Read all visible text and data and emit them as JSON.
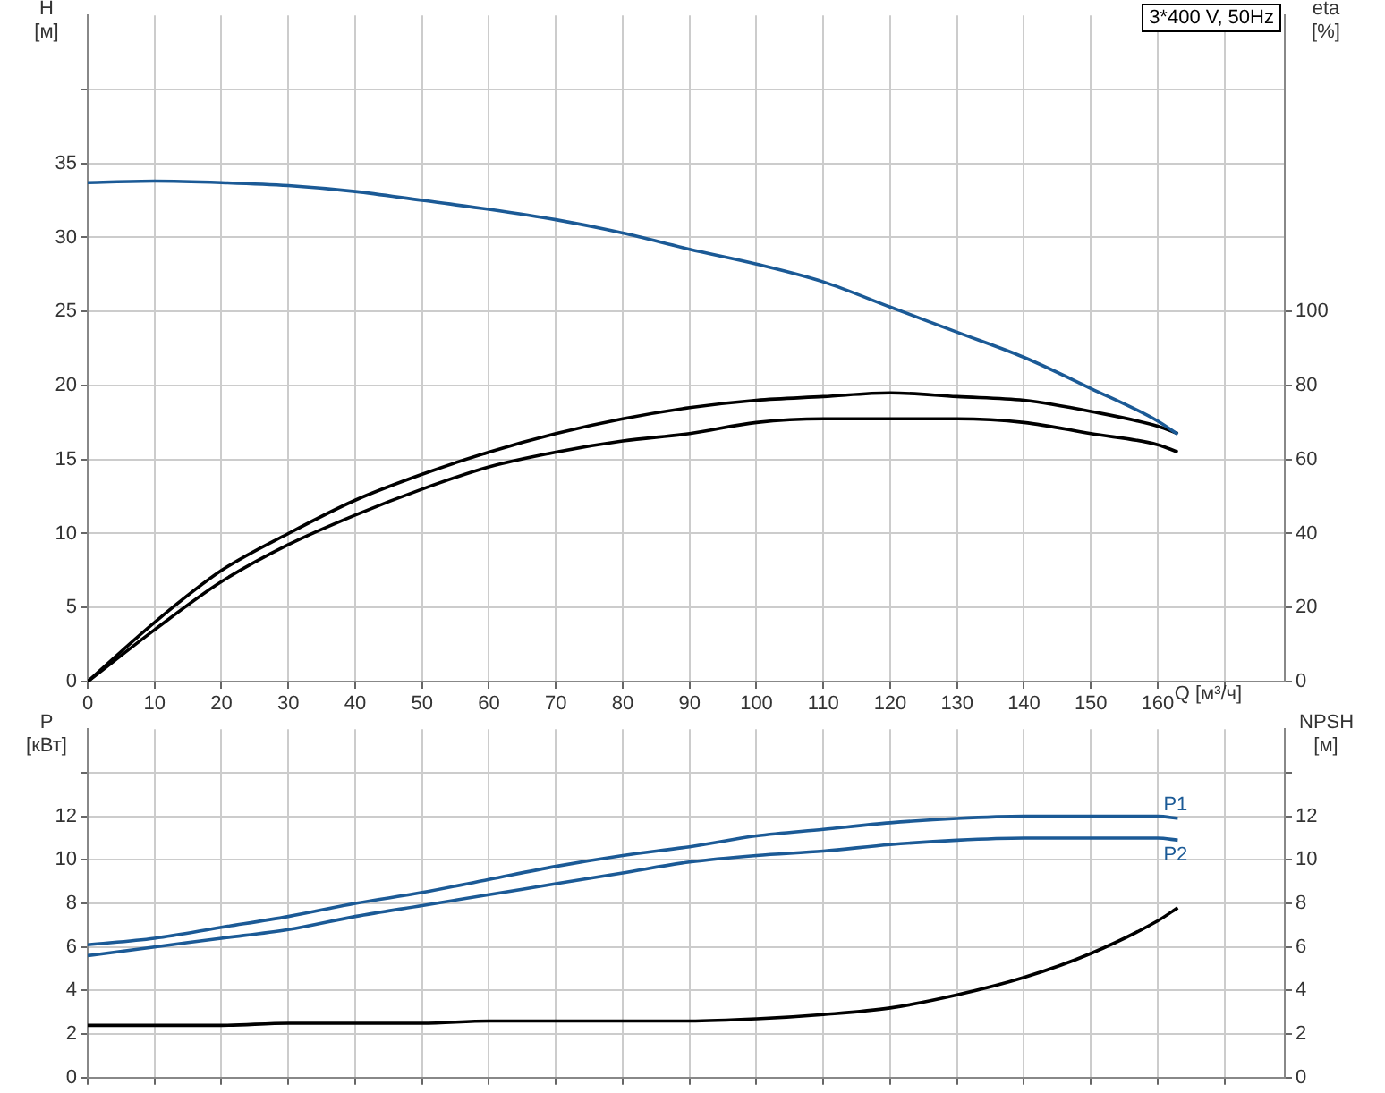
{
  "chart_data": [
    {
      "type": "line",
      "title": "3*400 V, 50Hz",
      "xlabel": "Q [м³/ч]",
      "ylabel": "H [м]",
      "y2label": "eta [%]",
      "x": [
        0,
        10,
        20,
        30,
        40,
        50,
        60,
        70,
        80,
        90,
        100,
        110,
        120,
        130,
        140,
        150,
        160,
        163
      ],
      "series": [
        {
          "color": "#1b5a96",
          "values": [
            33.7,
            33.8,
            33.7,
            33.5,
            33.1,
            32.5,
            31.9,
            31.2,
            30.3,
            29.2,
            28.2,
            27.0,
            25.3,
            23.6,
            21.9,
            19.8,
            17.6,
            16.7
          ]
        },
        {
          "color": "#000000",
          "axis": "y2",
          "values": [
            0,
            16,
            30,
            40,
            49,
            56,
            62,
            67,
            71,
            74,
            76,
            77,
            78,
            77,
            76,
            73,
            69,
            67
          ]
        },
        {
          "color": "#000000",
          "axis": "y2",
          "values": [
            0,
            14,
            27,
            37,
            45,
            52,
            58,
            62,
            65,
            67,
            70,
            71,
            71,
            71,
            70,
            67,
            64,
            62
          ]
        }
      ],
      "xlim": [
        0,
        179
      ],
      "xticks": [
        0,
        10,
        20,
        30,
        40,
        50,
        60,
        70,
        80,
        90,
        100,
        110,
        120,
        130,
        140,
        150,
        160,
        {
          "value": 170,
          "label": null
        }
      ],
      "ylim": [
        0,
        45
      ],
      "yticks": [
        0,
        5,
        10,
        15,
        20,
        25,
        30,
        35,
        {
          "value": 40,
          "label": null
        }
      ],
      "y2lim": [
        0,
        180
      ],
      "y2ticks": [
        0,
        20,
        40,
        60,
        80,
        100
      ],
      "grid": true,
      "marker": "none",
      "line_style": "solid"
    },
    {
      "type": "line",
      "ylabel": "P [кВт]",
      "y2label": "NPSH [м]",
      "x": [
        0,
        10,
        20,
        30,
        40,
        50,
        60,
        70,
        80,
        90,
        100,
        110,
        120,
        130,
        140,
        150,
        160,
        163
      ],
      "series": [
        {
          "name": "P1",
          "color": "#1b5a96",
          "values": [
            6.1,
            6.4,
            6.9,
            7.4,
            8.0,
            8.5,
            9.1,
            9.7,
            10.2,
            10.6,
            11.1,
            11.4,
            11.7,
            11.9,
            12.0,
            12.0,
            12.0,
            11.9
          ]
        },
        {
          "name": "P2",
          "color": "#1b5a96",
          "values": [
            5.6,
            6.0,
            6.4,
            6.8,
            7.4,
            7.9,
            8.4,
            8.9,
            9.4,
            9.9,
            10.2,
            10.4,
            10.7,
            10.9,
            11.0,
            11.0,
            11.0,
            10.9
          ]
        },
        {
          "color": "#000000",
          "axis": "y2",
          "values": [
            2.4,
            2.4,
            2.4,
            2.5,
            2.5,
            2.5,
            2.6,
            2.6,
            2.6,
            2.6,
            2.7,
            2.9,
            3.2,
            3.8,
            4.6,
            5.7,
            7.2,
            7.8
          ]
        }
      ],
      "xlim": [
        0,
        179
      ],
      "xticks": [
        0,
        10,
        20,
        30,
        40,
        50,
        60,
        70,
        80,
        90,
        100,
        110,
        120,
        130,
        140,
        150,
        160,
        {
          "value": 170,
          "label": null
        }
      ],
      "ylim": [
        0,
        16
      ],
      "yticks": [
        0,
        2,
        4,
        6,
        8,
        10,
        12,
        {
          "value": 14,
          "label": null
        }
      ],
      "y2lim": [
        0,
        16
      ],
      "y2ticks": [
        0,
        2,
        4,
        6,
        8,
        10,
        12,
        {
          "value": 14,
          "label": null
        }
      ],
      "tick_labels": "y",
      "grid": true,
      "marker": "none",
      "line_style": "solid"
    }
  ]
}
